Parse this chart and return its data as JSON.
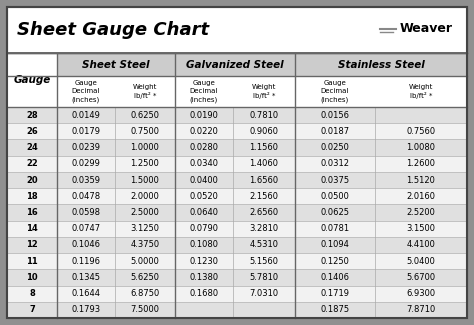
{
  "title": "Sheet Gauge Chart",
  "bg_outer": "#909090",
  "bg_inner": "#ffffff",
  "title_bar_bg": "#ffffff",
  "section_header_bg": "#c8c8c8",
  "subheader_bg": "#ffffff",
  "row_bg_odd": "#e0e0e0",
  "row_bg_even": "#f2f2f2",
  "gauges": [
    28,
    26,
    24,
    22,
    20,
    18,
    16,
    14,
    12,
    11,
    10,
    8,
    7
  ],
  "sheet_steel": [
    [
      "0.0149",
      "0.6250"
    ],
    [
      "0.0179",
      "0.7500"
    ],
    [
      "0.0239",
      "1.0000"
    ],
    [
      "0.0299",
      "1.2500"
    ],
    [
      "0.0359",
      "1.5000"
    ],
    [
      "0.0478",
      "2.0000"
    ],
    [
      "0.0598",
      "2.5000"
    ],
    [
      "0.0747",
      "3.1250"
    ],
    [
      "0.1046",
      "4.3750"
    ],
    [
      "0.1196",
      "5.0000"
    ],
    [
      "0.1345",
      "5.6250"
    ],
    [
      "0.1644",
      "6.8750"
    ],
    [
      "0.1793",
      "7.5000"
    ]
  ],
  "galvanized_steel": [
    [
      "0.0190",
      "0.7810"
    ],
    [
      "0.0220",
      "0.9060"
    ],
    [
      "0.0280",
      "1.1560"
    ],
    [
      "0.0340",
      "1.4060"
    ],
    [
      "0.0400",
      "1.6560"
    ],
    [
      "0.0520",
      "2.1560"
    ],
    [
      "0.0640",
      "2.6560"
    ],
    [
      "0.0790",
      "3.2810"
    ],
    [
      "0.1080",
      "4.5310"
    ],
    [
      "0.1230",
      "5.1560"
    ],
    [
      "0.1380",
      "5.7810"
    ],
    [
      "0.1680",
      "7.0310"
    ],
    [
      "",
      ""
    ]
  ],
  "stainless_steel": [
    [
      "0.0156",
      ""
    ],
    [
      "0.0187",
      "0.7560"
    ],
    [
      "0.0250",
      "1.0080"
    ],
    [
      "0.0312",
      "1.2600"
    ],
    [
      "0.0375",
      "1.5120"
    ],
    [
      "0.0500",
      "2.0160"
    ],
    [
      "0.0625",
      "2.5200"
    ],
    [
      "0.0781",
      "3.1500"
    ],
    [
      "0.1094",
      "4.4100"
    ],
    [
      "0.1250",
      "5.0400"
    ],
    [
      "0.1406",
      "5.6700"
    ],
    [
      "0.1719",
      "6.9300"
    ],
    [
      "0.1875",
      "7.8710"
    ]
  ],
  "weight_label": "lb/ft² *"
}
